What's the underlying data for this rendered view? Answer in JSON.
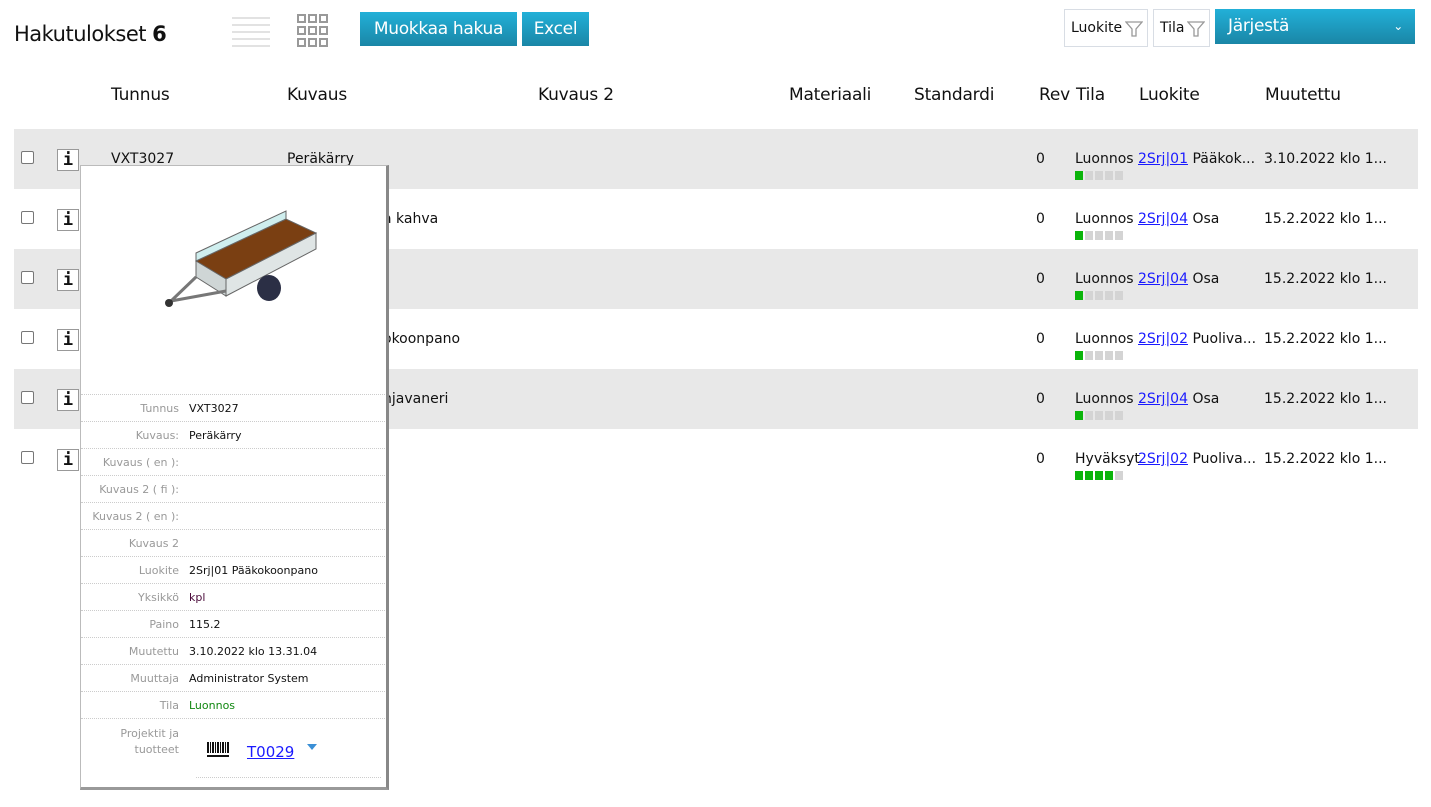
{
  "header": {
    "title": "Hakutulokset",
    "count": "6",
    "edit_search": "Muokkaa hakua",
    "excel": "Excel",
    "filter_luokite": "Luokite",
    "filter_tila": "Tila",
    "sort": "Järjestä"
  },
  "columns": [
    "Tunnus",
    "Kuvaus",
    "Kuvaus 2",
    "Materiaali",
    "Standardi",
    "Rev",
    "Tila",
    "Luokite",
    "Muutettu"
  ],
  "rows": [
    {
      "tunnus": "VXT3027",
      "kuvaus": "Peräkärry",
      "rev": "0",
      "tila": "Luonnos",
      "luokite_code": "2Srj|01",
      "luokite_name": "Pääkok...",
      "muutettu": "3.10.2022 klo 1...",
      "progress": 1
    },
    {
      "tunnus": "",
      "kuvaus": "a kahva",
      "rev": "0",
      "tila": "Luonnos",
      "luokite_code": "2Srj|04",
      "luokite_name": "Osa",
      "muutettu": "15.2.2022 klo 1...",
      "progress": 1
    },
    {
      "tunnus": "",
      "kuvaus": "",
      "rev": "0",
      "tila": "Luonnos",
      "luokite_code": "2Srj|04",
      "luokite_name": "Osa",
      "muutettu": "15.2.2022 klo 1...",
      "progress": 1
    },
    {
      "tunnus": "",
      "kuvaus": "okoonpano",
      "rev": "0",
      "tila": "Luonnos",
      "luokite_code": "2Srj|02",
      "luokite_name": "Puoliva...",
      "muutettu": "15.2.2022 klo 1...",
      "progress": 1
    },
    {
      "tunnus": "",
      "kuvaus": "njavaneri",
      "rev": "0",
      "tila": "Luonnos",
      "luokite_code": "2Srj|04",
      "luokite_name": "Osa",
      "muutettu": "15.2.2022 klo 1...",
      "progress": 1
    },
    {
      "tunnus": "",
      "kuvaus": "",
      "rev": "0",
      "tila": "Hyväksyt",
      "luokite_code": "2Srj|02",
      "luokite_name": "Puoliva...",
      "muutettu": "15.2.2022 klo 1...",
      "progress": 4
    }
  ],
  "popup": {
    "fields": [
      {
        "label": "Tunnus",
        "value": "VXT3027"
      },
      {
        "label": "Kuvaus:",
        "value": "Peräkärry"
      },
      {
        "label": "Kuvaus ( en ):",
        "value": ""
      },
      {
        "label": "Kuvaus 2 ( fi ):",
        "value": ""
      },
      {
        "label": "Kuvaus 2 ( en ):",
        "value": ""
      },
      {
        "label": "Kuvaus 2",
        "value": ""
      },
      {
        "label": "Luokite",
        "value": "2Srj|01 Pääkokoonpano"
      },
      {
        "label": "Yksikkö",
        "value": "kpl"
      },
      {
        "label": "Paino",
        "value": "115.2"
      },
      {
        "label": "Muutettu",
        "value": "3.10.2022 klo 13.31.04"
      },
      {
        "label": "Muuttaja",
        "value": "Administrator System"
      },
      {
        "label": "Tila",
        "value": "Luonnos"
      }
    ],
    "projects_label": "Projektit ja tuotteet",
    "project_link": "T0029"
  },
  "colors": {
    "accent": "#1a9cc4",
    "progress_on": "#0ab40a",
    "progress_off": "#d4d4d4",
    "status_green": "#118811"
  }
}
